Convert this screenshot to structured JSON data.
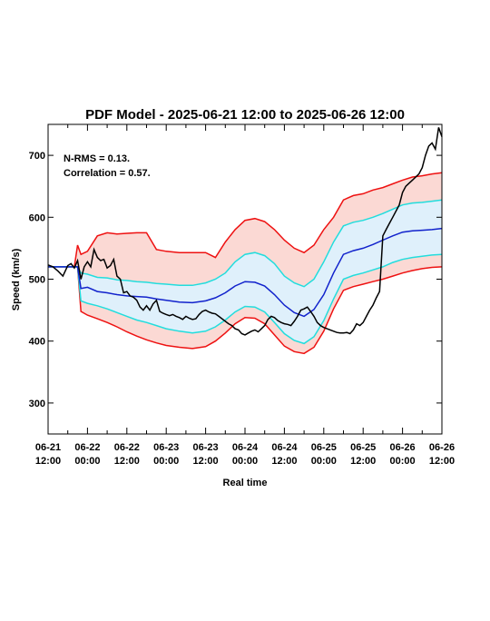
{
  "chart_data": {
    "type": "line",
    "title": "PDF Model - 2025-06-21 12:00 to 2025-06-26 12:00",
    "xlabel": "Real time",
    "ylabel": "Speed (km/s)",
    "xlim_hours": [
      0,
      120
    ],
    "ylim": [
      250,
      750
    ],
    "yticks": [
      300,
      400,
      500,
      600,
      700
    ],
    "xticks": [
      {
        "hour": 0,
        "date": "06-21",
        "time": "12:00"
      },
      {
        "hour": 12,
        "date": "06-22",
        "time": "00:00"
      },
      {
        "hour": 24,
        "date": "06-22",
        "time": "12:00"
      },
      {
        "hour": 36,
        "date": "06-23",
        "time": "00:00"
      },
      {
        "hour": 48,
        "date": "06-23",
        "time": "12:00"
      },
      {
        "hour": 60,
        "date": "06-24",
        "time": "00:00"
      },
      {
        "hour": 72,
        "date": "06-24",
        "time": "12:00"
      },
      {
        "hour": 84,
        "date": "06-25",
        "time": "00:00"
      },
      {
        "hour": 96,
        "date": "06-25",
        "time": "12:00"
      },
      {
        "hour": 108,
        "date": "06-26",
        "time": "00:00"
      },
      {
        "hour": 120,
        "date": "06-26",
        "time": "12:00"
      }
    ],
    "annotations": [
      "N-RMS = 0.13.",
      "Correlation = 0.57."
    ],
    "colors": {
      "outer_band_fill": "#fbd9d4",
      "inner_band_fill": "#dff0fb",
      "outer_line": "#ee1111",
      "inner_line": "#22dddd",
      "median_line": "#1122cc",
      "observed_line": "#000000"
    },
    "x": [
      0,
      6,
      8,
      9,
      10,
      12,
      15,
      18,
      21,
      24,
      27,
      30,
      33,
      36,
      40,
      44,
      48,
      51,
      54,
      57,
      60,
      63,
      66,
      69,
      72,
      75,
      78,
      81,
      84,
      87,
      90,
      93,
      96,
      99,
      102,
      105,
      108,
      111,
      114,
      117,
      120
    ],
    "series": [
      {
        "role": "outer-upper",
        "values": [
          520,
          520,
          520,
          555,
          540,
          545,
          570,
          575,
          573,
          574,
          575,
          575,
          548,
          545,
          543,
          543,
          543,
          535,
          560,
          580,
          595,
          598,
          593,
          580,
          563,
          550,
          543,
          555,
          580,
          600,
          628,
          635,
          638,
          644,
          648,
          654,
          660,
          665,
          667,
          670,
          672
        ]
      },
      {
        "role": "inner-upper",
        "values": [
          520,
          520,
          520,
          520,
          510,
          508,
          503,
          502,
          499,
          498,
          496,
          495,
          493,
          492,
          490,
          490,
          494,
          500,
          510,
          528,
          540,
          543,
          538,
          525,
          505,
          494,
          488,
          500,
          528,
          560,
          586,
          592,
          595,
          600,
          606,
          613,
          620,
          623,
          624,
          626,
          628
        ]
      },
      {
        "role": "median",
        "values": [
          520,
          520,
          520,
          520,
          485,
          487,
          480,
          478,
          475,
          473,
          472,
          471,
          468,
          466,
          463,
          462,
          465,
          470,
          478,
          489,
          496,
          495,
          489,
          475,
          458,
          446,
          440,
          451,
          475,
          510,
          540,
          546,
          550,
          556,
          563,
          570,
          576,
          578,
          579,
          580,
          582
        ]
      },
      {
        "role": "inner-lower",
        "values": [
          520,
          520,
          520,
          520,
          465,
          461,
          457,
          452,
          446,
          440,
          434,
          430,
          425,
          420,
          416,
          413,
          416,
          423,
          434,
          447,
          456,
          455,
          447,
          430,
          412,
          401,
          396,
          407,
          433,
          468,
          500,
          506,
          510,
          515,
          520,
          527,
          532,
          535,
          537,
          539,
          540
        ]
      },
      {
        "role": "outer-lower",
        "values": [
          520,
          520,
          520,
          520,
          448,
          442,
          436,
          430,
          423,
          415,
          408,
          402,
          397,
          393,
          390,
          388,
          391,
          400,
          413,
          428,
          438,
          437,
          428,
          410,
          392,
          383,
          380,
          390,
          416,
          452,
          482,
          488,
          492,
          496,
          500,
          505,
          510,
          514,
          517,
          519,
          520
        ]
      }
    ],
    "observed": {
      "x": [
        0,
        1.5,
        3,
        4.5,
        6,
        7,
        8,
        9,
        10,
        11,
        12,
        13,
        14,
        15,
        16,
        17,
        18,
        19,
        20,
        21,
        22,
        23,
        24,
        25,
        26,
        27,
        28,
        29,
        30,
        31,
        32,
        33,
        34,
        35,
        36,
        37,
        38,
        39,
        40,
        41,
        42,
        43,
        44,
        45,
        46,
        47,
        48,
        49,
        50,
        51,
        52,
        53,
        54,
        55,
        56,
        57,
        58,
        59,
        60,
        61,
        62,
        63,
        64,
        65,
        66,
        67,
        68,
        69,
        70,
        71,
        72,
        73,
        74,
        75,
        76,
        77,
        78,
        79,
        80,
        81,
        82,
        83,
        84,
        85,
        86,
        87,
        88,
        89,
        90,
        91,
        92,
        93,
        94,
        95,
        96,
        97,
        98,
        99,
        100,
        101,
        102,
        103,
        104,
        105,
        106,
        107,
        108,
        109,
        110,
        111,
        112,
        113,
        114,
        115,
        116,
        117,
        118,
        119,
        120
      ],
      "values": [
        523,
        520,
        513,
        505,
        522,
        525,
        518,
        530,
        500,
        520,
        528,
        520,
        548,
        535,
        530,
        532,
        518,
        522,
        532,
        505,
        500,
        478,
        480,
        473,
        471,
        466,
        455,
        450,
        457,
        450,
        460,
        466,
        448,
        445,
        443,
        441,
        443,
        440,
        438,
        435,
        440,
        437,
        435,
        436,
        443,
        448,
        450,
        447,
        445,
        444,
        440,
        436,
        432,
        428,
        425,
        420,
        418,
        412,
        410,
        413,
        416,
        418,
        415,
        420,
        425,
        435,
        440,
        438,
        433,
        430,
        428,
        427,
        425,
        432,
        440,
        450,
        452,
        455,
        448,
        440,
        430,
        425,
        422,
        420,
        418,
        416,
        414,
        413,
        413,
        414,
        412,
        418,
        428,
        425,
        430,
        440,
        450,
        458,
        470,
        480,
        570,
        580,
        590,
        600,
        610,
        620,
        640,
        650,
        655,
        660,
        665,
        670,
        680,
        700,
        715,
        720,
        710,
        745,
        730
      ]
    }
  }
}
